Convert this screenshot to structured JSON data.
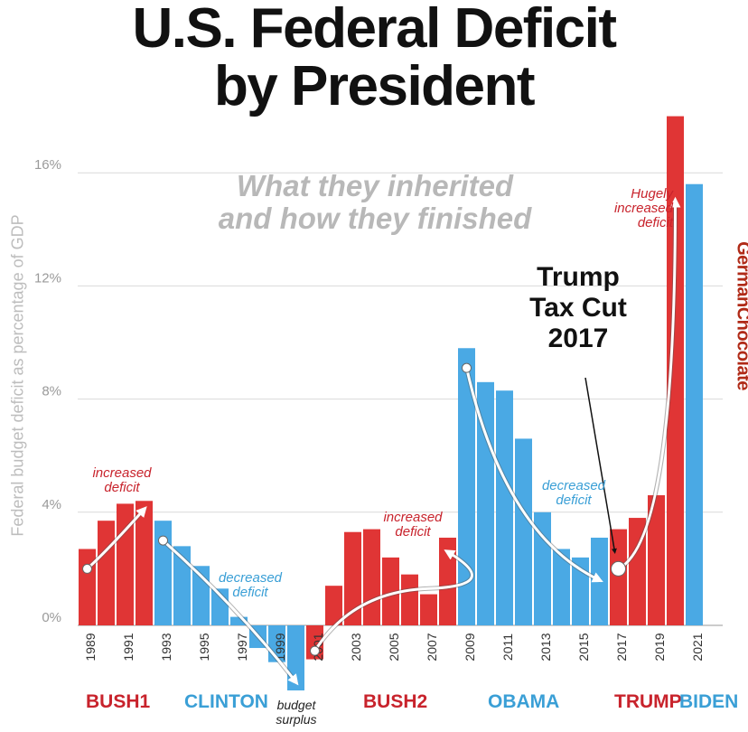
{
  "title": [
    "U.S. Federal Deficit",
    "by President"
  ],
  "subtitle": [
    "What they inherited",
    "and how they finished"
  ],
  "tax_cut_label": [
    "Trump",
    "Tax Cut",
    "2017"
  ],
  "watermark": "GermanChocolate",
  "colors": {
    "red": "#e03535",
    "blue": "#4aa9e4",
    "red_text": "#c8232c",
    "blue_text": "#3a9fd6"
  },
  "chart_data": {
    "type": "bar",
    "ylabel": "Federal budget deficit as percentage of GDP",
    "ylim": [
      -2.4,
      18
    ],
    "yticks": [
      0,
      4,
      8,
      12,
      16
    ],
    "ytick_labels": [
      "0%",
      "4%",
      "8%",
      "12%",
      "16%"
    ],
    "grid": true,
    "x": [
      1989,
      1990,
      1991,
      1992,
      1993,
      1994,
      1995,
      1996,
      1997,
      1998,
      1999,
      2000,
      2001,
      2002,
      2003,
      2004,
      2005,
      2006,
      2007,
      2008,
      2009,
      2010,
      2011,
      2012,
      2013,
      2014,
      2015,
      2016,
      2017,
      2018,
      2019,
      2020,
      2021
    ],
    "xtick_labels": [
      "1989",
      "1991",
      "1993",
      "1995",
      "1997",
      "1999",
      "2001",
      "2003",
      "2005",
      "2007",
      "2009",
      "2011",
      "2013",
      "2015",
      "2017",
      "2019",
      "2021"
    ],
    "values": [
      2.7,
      3.7,
      4.3,
      4.4,
      3.7,
      2.8,
      2.1,
      1.3,
      0.3,
      -0.8,
      -1.3,
      -2.3,
      -1.2,
      1.4,
      3.3,
      3.4,
      2.4,
      1.8,
      1.1,
      3.1,
      9.8,
      8.6,
      8.3,
      6.6,
      4.0,
      2.7,
      2.4,
      3.1,
      3.4,
      3.8,
      4.6,
      18.0,
      15.6
    ],
    "party": [
      "R",
      "R",
      "R",
      "R",
      "D",
      "D",
      "D",
      "D",
      "D",
      "D",
      "D",
      "D",
      "R",
      "R",
      "R",
      "R",
      "R",
      "R",
      "R",
      "R",
      "D",
      "D",
      "D",
      "D",
      "D",
      "D",
      "D",
      "D",
      "R",
      "R",
      "R",
      "R",
      "D"
    ],
    "presidents": [
      {
        "name": "BUSH1",
        "party": "R"
      },
      {
        "name": "CLINTON",
        "party": "D"
      },
      {
        "name": "BUSH2",
        "party": "R"
      },
      {
        "name": "OBAMA",
        "party": "D"
      },
      {
        "name": "TRUMP",
        "party": "R"
      },
      {
        "name": "BIDEN",
        "party": "D"
      }
    ],
    "annotations": [
      {
        "text": [
          "increased",
          "deficit"
        ],
        "party": "R"
      },
      {
        "text": [
          "decreased",
          "deficit"
        ],
        "party": "D"
      },
      {
        "text": [
          "budget",
          "surplus"
        ],
        "party": "none"
      },
      {
        "text": [
          "increased",
          "deficit"
        ],
        "party": "R"
      },
      {
        "text": [
          "decreased",
          "deficit"
        ],
        "party": "D"
      },
      {
        "text": [
          "Hugely",
          "increased",
          "deficit"
        ],
        "party": "R"
      }
    ]
  }
}
